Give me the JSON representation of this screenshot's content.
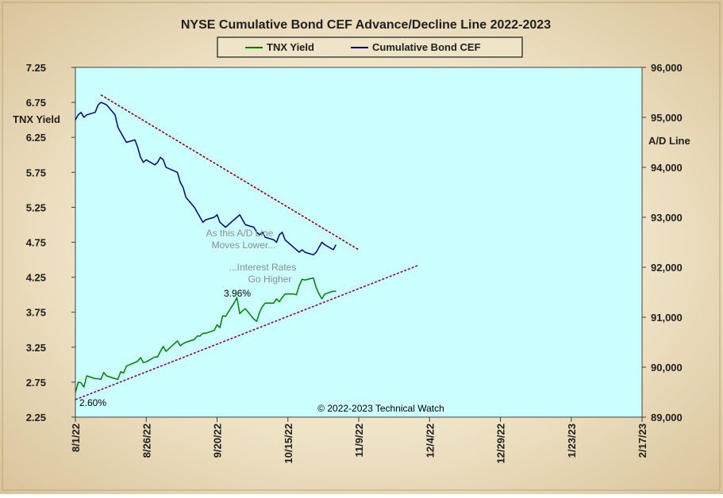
{
  "colors": {
    "background_plot": "#ccffff",
    "tnx_line": "#008000",
    "bond_line": "#000080",
    "trend_upper": "#8b0000",
    "trend_lower": "#800080",
    "annotation_gray": "#8c8c8c"
  },
  "chart_data": {
    "type": "line",
    "title": "NYSE Cumulative  Bond CEF Advance/Decline  Line 2022-2023",
    "left_axis": {
      "label": "TNX  Yield",
      "min": 2.25,
      "max": 7.25,
      "ticks": [
        "2.25",
        "2.75",
        "3.25",
        "3.75",
        "4.25",
        "4.75",
        "5.25",
        "5.75",
        "6.25",
        "6.75",
        "7.25"
      ]
    },
    "right_axis": {
      "label": "A/D Line",
      "min": 89000,
      "max": 96000,
      "ticks": [
        "89,000",
        "90,000",
        "91,000",
        "92,000",
        "93,000",
        "94,000",
        "95,000",
        "96,000"
      ]
    },
    "x_axis": {
      "min": "2022-08-01",
      "max": "2023-02-17",
      "ticks": [
        "8/1/22",
        "8/26/22",
        "9/20/22",
        "10/15/22",
        "11/9/22",
        "12/4/22",
        "12/29/22",
        "1/23/23",
        "2/17/23"
      ]
    },
    "grid": false,
    "legend_position": "top",
    "series": [
      {
        "name": "TNX Yield",
        "axis": "left",
        "color": "#008000",
        "x": [
          "2022-08-01",
          "2022-08-02",
          "2022-08-03",
          "2022-08-04",
          "2022-08-05",
          "2022-08-08",
          "2022-08-09",
          "2022-08-10",
          "2022-08-11",
          "2022-08-12",
          "2022-08-15",
          "2022-08-16",
          "2022-08-17",
          "2022-08-18",
          "2022-08-19",
          "2022-08-22",
          "2022-08-23",
          "2022-08-24",
          "2022-08-25",
          "2022-08-26",
          "2022-08-29",
          "2022-08-30",
          "2022-08-31",
          "2022-09-01",
          "2022-09-02",
          "2022-09-06",
          "2022-09-07",
          "2022-09-08",
          "2022-09-09",
          "2022-09-12",
          "2022-09-13",
          "2022-09-14",
          "2022-09-15",
          "2022-09-16",
          "2022-09-19",
          "2022-09-20",
          "2022-09-21",
          "2022-09-22",
          "2022-09-23",
          "2022-09-26",
          "2022-09-27",
          "2022-09-28",
          "2022-09-29",
          "2022-09-30",
          "2022-10-03",
          "2022-10-04",
          "2022-10-05",
          "2022-10-06",
          "2022-10-07",
          "2022-10-10",
          "2022-10-11",
          "2022-10-12",
          "2022-10-13",
          "2022-10-14",
          "2022-10-17",
          "2022-10-18",
          "2022-10-19",
          "2022-10-20",
          "2022-10-21",
          "2022-10-24",
          "2022-10-25",
          "2022-10-26",
          "2022-10-27",
          "2022-10-28",
          "2022-10-31",
          "2022-11-01"
        ],
        "values": [
          2.6,
          2.75,
          2.74,
          2.68,
          2.84,
          2.8,
          2.8,
          2.79,
          2.89,
          2.84,
          2.8,
          2.79,
          2.9,
          2.88,
          2.98,
          3.03,
          3.05,
          3.1,
          3.03,
          3.04,
          3.11,
          3.11,
          3.19,
          3.26,
          3.19,
          3.34,
          3.27,
          3.3,
          3.32,
          3.36,
          3.41,
          3.41,
          3.45,
          3.45,
          3.49,
          3.57,
          3.53,
          3.7,
          3.69,
          3.88,
          3.96,
          3.73,
          3.77,
          3.8,
          3.65,
          3.62,
          3.75,
          3.83,
          3.88,
          3.88,
          3.94,
          3.9,
          3.96,
          4.01,
          4.01,
          4.0,
          4.13,
          4.22,
          4.21,
          4.24,
          4.1,
          4.01,
          3.94,
          4.01,
          4.05,
          4.05
        ]
      },
      {
        "name": "Cumulative Bond CEF",
        "axis": "right",
        "color": "#000080",
        "x": [
          "2022-08-01",
          "2022-08-02",
          "2022-08-03",
          "2022-08-04",
          "2022-08-05",
          "2022-08-08",
          "2022-08-09",
          "2022-08-10",
          "2022-08-11",
          "2022-08-12",
          "2022-08-15",
          "2022-08-16",
          "2022-08-17",
          "2022-08-18",
          "2022-08-19",
          "2022-08-22",
          "2022-08-23",
          "2022-08-24",
          "2022-08-25",
          "2022-08-26",
          "2022-08-29",
          "2022-08-30",
          "2022-08-31",
          "2022-09-01",
          "2022-09-02",
          "2022-09-06",
          "2022-09-07",
          "2022-09-08",
          "2022-09-09",
          "2022-09-12",
          "2022-09-13",
          "2022-09-14",
          "2022-09-15",
          "2022-09-16",
          "2022-09-19",
          "2022-09-20",
          "2022-09-21",
          "2022-09-22",
          "2022-09-23",
          "2022-09-26",
          "2022-09-27",
          "2022-09-28",
          "2022-09-29",
          "2022-09-30",
          "2022-10-03",
          "2022-10-04",
          "2022-10-05",
          "2022-10-06",
          "2022-10-07",
          "2022-10-10",
          "2022-10-11",
          "2022-10-12",
          "2022-10-13",
          "2022-10-14",
          "2022-10-17",
          "2022-10-18",
          "2022-10-19",
          "2022-10-20",
          "2022-10-21",
          "2022-10-24",
          "2022-10-25",
          "2022-10-26",
          "2022-10-27",
          "2022-10-28",
          "2022-10-31",
          "2022-11-01"
        ],
        "values": [
          94950,
          95050,
          95100,
          95000,
          95050,
          95100,
          95250,
          95300,
          95280,
          95250,
          95050,
          94800,
          94700,
          94600,
          94500,
          94550,
          94400,
          94200,
          94100,
          94150,
          94050,
          94100,
          94200,
          94150,
          94000,
          93900,
          93700,
          93600,
          93400,
          93200,
          93100,
          93000,
          92900,
          92950,
          93000,
          93050,
          92900,
          92850,
          92800,
          92950,
          93000,
          93050,
          92950,
          92850,
          92800,
          92700,
          92650,
          92700,
          92600,
          92550,
          92500,
          92650,
          92700,
          92550,
          92400,
          92350,
          92300,
          92350,
          92300,
          92250,
          92300,
          92400,
          92500,
          92450,
          92350,
          92450
        ]
      }
    ],
    "trendlines": [
      {
        "start": [
          "2022-08-10",
          95450
        ],
        "end": [
          "2022-11-09",
          92350
        ],
        "axis": "right",
        "color": "#8b0000"
      },
      {
        "start": [
          "2022-08-01",
          2.5
        ],
        "end": [
          "2022-11-30",
          4.42
        ],
        "axis": "left",
        "color": "#800080"
      }
    ],
    "annotations": [
      {
        "text": "As this A/D Line",
        "color": "#8c8c8c"
      },
      {
        "text": "Moves  Lower...",
        "color": "#8c8c8c"
      },
      {
        "text": "...Interest Rates",
        "color": "#8c8c8c"
      },
      {
        "text": "Go Higher",
        "color": "#8c8c8c"
      },
      {
        "text": "3.96%",
        "color": "#000000"
      },
      {
        "text": "2.60%",
        "color": "#000000"
      },
      {
        "text": "© 2022-2023  Technical  Watch",
        "color": "#000000"
      }
    ]
  }
}
